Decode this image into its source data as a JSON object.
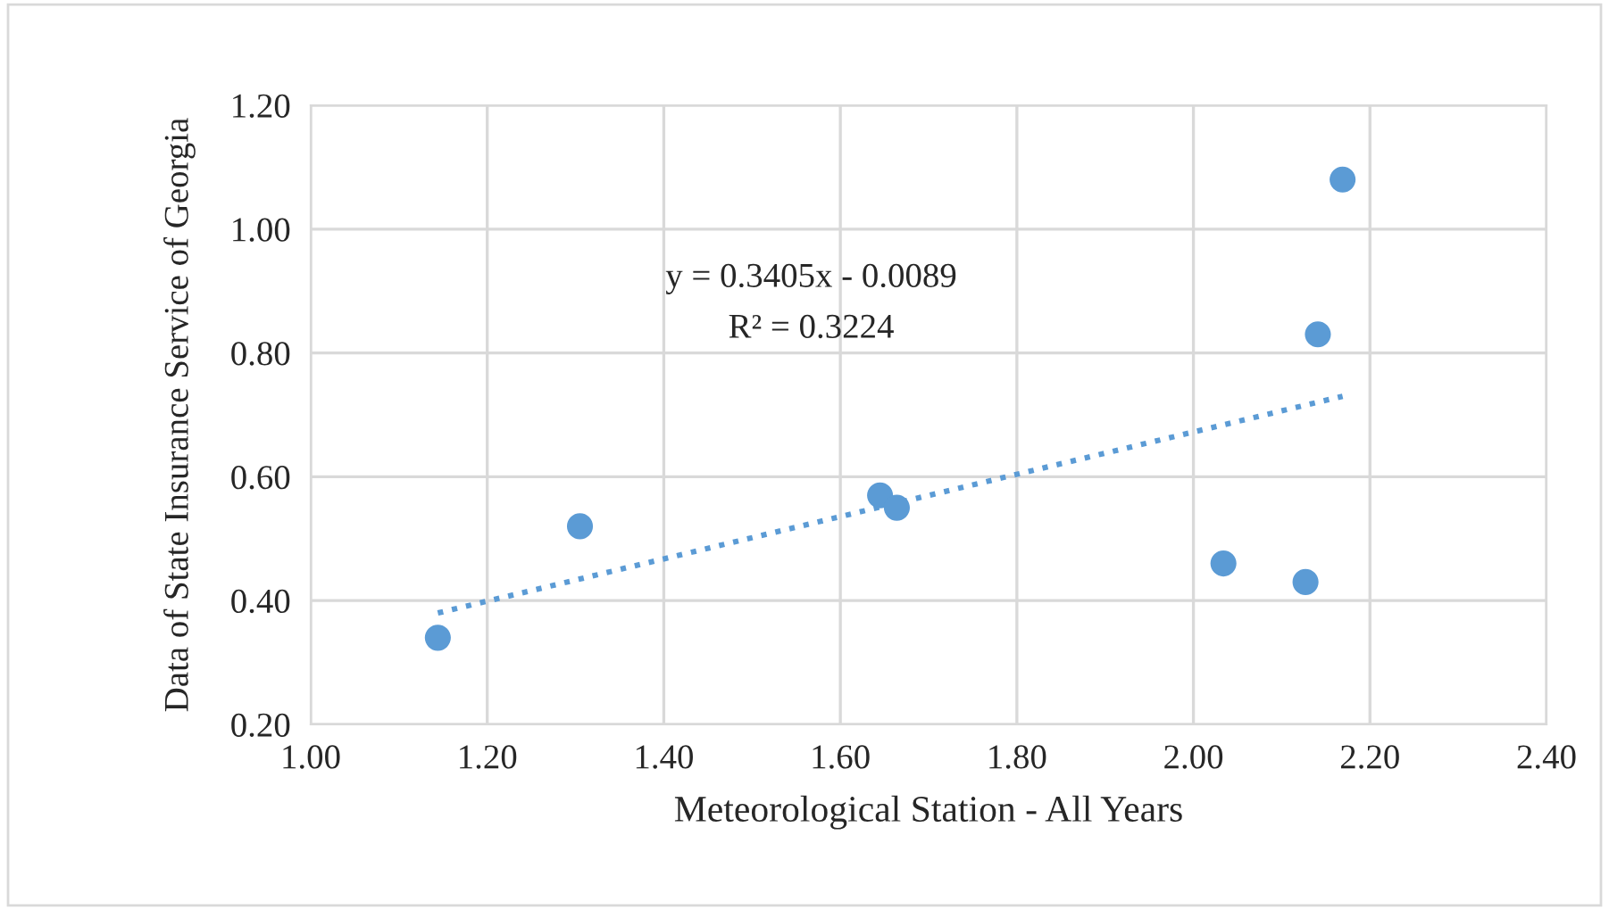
{
  "chart_data": {
    "type": "scatter",
    "xlabel": "Meteorological Station - All Years",
    "ylabel": "Data of State Insurance Service of Georgia",
    "series": [
      {
        "color": "#5b9bd5",
        "x": [
          1.144,
          1.305,
          1.645,
          1.664,
          2.034,
          2.127,
          2.141,
          2.169
        ],
        "values": [
          0.34,
          0.52,
          0.57,
          0.55,
          0.46,
          0.43,
          0.83,
          1.08
        ],
        "marker": "circle"
      },
      {
        "type": "line",
        "color": "#5b9bd5",
        "x": [
          1.144,
          2.169
        ],
        "values": [
          0.38,
          0.73
        ],
        "line_style": "dotted",
        "marker": "none"
      }
    ],
    "annotations": [
      "y = 0.3405x - 0.0089",
      "R² = 0.3224"
    ],
    "xlim": [
      1.0,
      2.4
    ],
    "xticks": [
      {
        "value": 1.0,
        "label": "1.00"
      },
      {
        "value": 1.2,
        "label": "1.20"
      },
      {
        "value": 1.4,
        "label": "1.40"
      },
      {
        "value": 1.6,
        "label": "1.60"
      },
      {
        "value": 1.8,
        "label": "1.80"
      },
      {
        "value": 2.0,
        "label": "2.00"
      },
      {
        "value": 2.2,
        "label": "2.20"
      },
      {
        "value": 2.4,
        "label": "2.40"
      }
    ],
    "ylim": [
      0.2,
      1.2
    ],
    "yticks": [
      {
        "value": 0.2,
        "label": "0.20"
      },
      {
        "value": 0.4,
        "label": "0.40"
      },
      {
        "value": 0.6,
        "label": "0.60"
      },
      {
        "value": 0.8,
        "label": "0.80"
      },
      {
        "value": 1.0,
        "label": "1.00"
      },
      {
        "value": 1.2,
        "label": "1.20"
      }
    ],
    "grid": true
  }
}
